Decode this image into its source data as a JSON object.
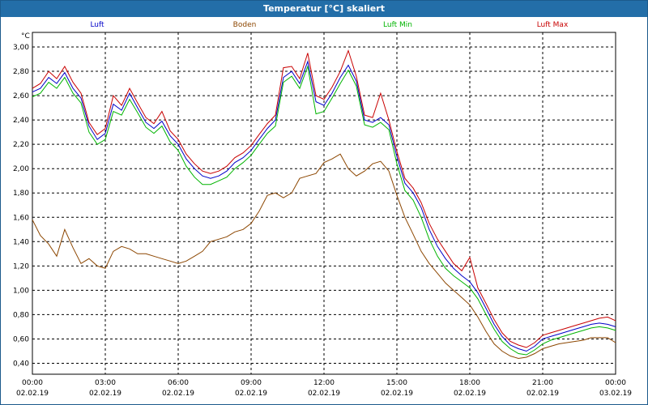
{
  "window": {
    "title": "Temperatur [°C] skaliert"
  },
  "chart_data": {
    "type": "line",
    "title": "Temperatur [°C] skaliert",
    "ylabel": "°C",
    "xlabel": "",
    "xlim": [
      "02.02.19 00:00",
      "03.02.19 00:00"
    ],
    "ylim": [
      0.31,
      3.12
    ],
    "yticks": [
      "3,00",
      "2,80",
      "2,60",
      "2,40",
      "2,20",
      "2,00",
      "1,80",
      "1,60",
      "1,40",
      "1,20",
      "1,00",
      "0,80",
      "0,60",
      "0,40"
    ],
    "ytick_values": [
      3.0,
      2.8,
      2.6,
      2.4,
      2.2,
      2.0,
      1.8,
      1.6,
      1.4,
      1.2,
      1.0,
      0.8,
      0.6,
      0.4
    ],
    "xticks": [
      {
        "time": "00:00",
        "date": "02.02.19",
        "hour": 0
      },
      {
        "time": "03:00",
        "date": "02.02.19",
        "hour": 3
      },
      {
        "time": "06:00",
        "date": "02.02.19",
        "hour": 6
      },
      {
        "time": "09:00",
        "date": "02.02.19",
        "hour": 9
      },
      {
        "time": "12:00",
        "date": "02.02.19",
        "hour": 12
      },
      {
        "time": "15:00",
        "date": "02.02.19",
        "hour": 15
      },
      {
        "time": "18:00",
        "date": "02.02.19",
        "hour": 18
      },
      {
        "time": "21:00",
        "date": "02.02.19",
        "hour": 21
      },
      {
        "time": "00:00",
        "date": "03.02.19",
        "hour": 24
      }
    ],
    "grid": true,
    "legend_position": "top",
    "series": [
      {
        "name": "Luft",
        "color": "#0000c8",
        "points": [
          [
            0,
            2.63
          ],
          [
            0.33,
            2.66
          ],
          [
            0.67,
            2.75
          ],
          [
            1,
            2.7
          ],
          [
            1.33,
            2.79
          ],
          [
            1.67,
            2.66
          ],
          [
            2,
            2.58
          ],
          [
            2.33,
            2.35
          ],
          [
            2.67,
            2.24
          ],
          [
            3,
            2.29
          ],
          [
            3.33,
            2.53
          ],
          [
            3.67,
            2.48
          ],
          [
            4,
            2.62
          ],
          [
            4.33,
            2.5
          ],
          [
            4.67,
            2.38
          ],
          [
            5,
            2.33
          ],
          [
            5.33,
            2.39
          ],
          [
            5.67,
            2.27
          ],
          [
            6,
            2.2
          ],
          [
            6.33,
            2.08
          ],
          [
            6.67,
            2.0
          ],
          [
            7,
            1.94
          ],
          [
            7.33,
            1.92
          ],
          [
            7.67,
            1.94
          ],
          [
            8,
            1.98
          ],
          [
            8.33,
            2.05
          ],
          [
            8.67,
            2.09
          ],
          [
            9,
            2.15
          ],
          [
            9.33,
            2.24
          ],
          [
            9.67,
            2.33
          ],
          [
            10,
            2.4
          ],
          [
            10.33,
            2.75
          ],
          [
            10.67,
            2.8
          ],
          [
            11,
            2.7
          ],
          [
            11.33,
            2.88
          ],
          [
            11.67,
            2.55
          ],
          [
            12,
            2.52
          ],
          [
            12.33,
            2.62
          ],
          [
            12.67,
            2.75
          ],
          [
            13,
            2.85
          ],
          [
            13.33,
            2.72
          ],
          [
            13.67,
            2.4
          ],
          [
            14,
            2.38
          ],
          [
            14.33,
            2.42
          ],
          [
            14.67,
            2.36
          ],
          [
            15,
            2.1
          ],
          [
            15.33,
            1.88
          ],
          [
            15.67,
            1.8
          ],
          [
            16,
            1.68
          ],
          [
            16.33,
            1.5
          ],
          [
            16.67,
            1.36
          ],
          [
            17,
            1.26
          ],
          [
            17.33,
            1.18
          ],
          [
            17.67,
            1.12
          ],
          [
            18,
            1.07
          ],
          [
            18.33,
            0.98
          ],
          [
            18.67,
            0.85
          ],
          [
            19,
            0.72
          ],
          [
            19.33,
            0.62
          ],
          [
            19.67,
            0.55
          ],
          [
            20,
            0.52
          ],
          [
            20.33,
            0.5
          ],
          [
            20.67,
            0.54
          ],
          [
            21,
            0.6
          ],
          [
            21.33,
            0.62
          ],
          [
            21.67,
            0.64
          ],
          [
            22,
            0.66
          ],
          [
            22.33,
            0.68
          ],
          [
            22.67,
            0.7
          ],
          [
            23,
            0.72
          ],
          [
            23.33,
            0.73
          ],
          [
            23.67,
            0.72
          ],
          [
            24,
            0.7
          ]
        ]
      },
      {
        "name": "Boden",
        "color": "#8c4600",
        "points": [
          [
            0,
            1.58
          ],
          [
            0.33,
            1.45
          ],
          [
            0.67,
            1.38
          ],
          [
            1,
            1.28
          ],
          [
            1.33,
            1.5
          ],
          [
            1.67,
            1.35
          ],
          [
            2,
            1.22
          ],
          [
            2.33,
            1.26
          ],
          [
            2.67,
            1.2
          ],
          [
            3,
            1.18
          ],
          [
            3.33,
            1.32
          ],
          [
            3.67,
            1.36
          ],
          [
            4,
            1.34
          ],
          [
            4.33,
            1.3
          ],
          [
            4.67,
            1.3
          ],
          [
            5,
            1.28
          ],
          [
            5.33,
            1.26
          ],
          [
            5.67,
            1.24
          ],
          [
            6,
            1.22
          ],
          [
            6.33,
            1.24
          ],
          [
            6.67,
            1.28
          ],
          [
            7,
            1.32
          ],
          [
            7.33,
            1.4
          ],
          [
            7.67,
            1.42
          ],
          [
            8,
            1.44
          ],
          [
            8.33,
            1.48
          ],
          [
            8.67,
            1.5
          ],
          [
            9,
            1.55
          ],
          [
            9.33,
            1.65
          ],
          [
            9.67,
            1.78
          ],
          [
            10,
            1.8
          ],
          [
            10.33,
            1.76
          ],
          [
            10.67,
            1.8
          ],
          [
            11,
            1.92
          ],
          [
            11.33,
            1.94
          ],
          [
            11.67,
            1.96
          ],
          [
            12,
            2.05
          ],
          [
            12.33,
            2.08
          ],
          [
            12.67,
            2.12
          ],
          [
            13,
            2.0
          ],
          [
            13.33,
            1.94
          ],
          [
            13.67,
            1.98
          ],
          [
            14,
            2.04
          ],
          [
            14.33,
            2.06
          ],
          [
            14.67,
            1.98
          ],
          [
            15,
            1.78
          ],
          [
            15.33,
            1.6
          ],
          [
            15.67,
            1.46
          ],
          [
            16,
            1.32
          ],
          [
            16.33,
            1.22
          ],
          [
            16.67,
            1.14
          ],
          [
            17,
            1.06
          ],
          [
            17.33,
            1.0
          ],
          [
            17.67,
            0.94
          ],
          [
            18,
            0.88
          ],
          [
            18.33,
            0.78
          ],
          [
            18.67,
            0.66
          ],
          [
            19,
            0.56
          ],
          [
            19.33,
            0.5
          ],
          [
            19.67,
            0.46
          ],
          [
            20,
            0.44
          ],
          [
            20.33,
            0.45
          ],
          [
            20.67,
            0.48
          ],
          [
            21,
            0.52
          ],
          [
            21.33,
            0.54
          ],
          [
            21.67,
            0.56
          ],
          [
            22,
            0.57
          ],
          [
            22.33,
            0.58
          ],
          [
            22.67,
            0.59
          ],
          [
            23,
            0.61
          ],
          [
            23.33,
            0.61
          ],
          [
            23.67,
            0.61
          ],
          [
            24,
            0.57
          ]
        ]
      },
      {
        "name": "Luft Min",
        "color": "#00b400",
        "points": [
          [
            0,
            2.59
          ],
          [
            0.33,
            2.62
          ],
          [
            0.67,
            2.71
          ],
          [
            1,
            2.66
          ],
          [
            1.33,
            2.75
          ],
          [
            1.67,
            2.62
          ],
          [
            2,
            2.54
          ],
          [
            2.33,
            2.3
          ],
          [
            2.67,
            2.2
          ],
          [
            3,
            2.24
          ],
          [
            3.33,
            2.47
          ],
          [
            3.67,
            2.44
          ],
          [
            4,
            2.57
          ],
          [
            4.33,
            2.46
          ],
          [
            4.67,
            2.34
          ],
          [
            5,
            2.29
          ],
          [
            5.33,
            2.35
          ],
          [
            5.67,
            2.22
          ],
          [
            6,
            2.15
          ],
          [
            6.33,
            2.02
          ],
          [
            6.67,
            1.93
          ],
          [
            7,
            1.87
          ],
          [
            7.33,
            1.87
          ],
          [
            7.67,
            1.9
          ],
          [
            8,
            1.93
          ],
          [
            8.33,
            2.0
          ],
          [
            8.67,
            2.05
          ],
          [
            9,
            2.11
          ],
          [
            9.33,
            2.2
          ],
          [
            9.67,
            2.29
          ],
          [
            10,
            2.35
          ],
          [
            10.33,
            2.71
          ],
          [
            10.67,
            2.76
          ],
          [
            11,
            2.66
          ],
          [
            11.33,
            2.84
          ],
          [
            11.67,
            2.45
          ],
          [
            12,
            2.47
          ],
          [
            12.33,
            2.58
          ],
          [
            12.67,
            2.7
          ],
          [
            13,
            2.81
          ],
          [
            13.33,
            2.68
          ],
          [
            13.67,
            2.36
          ],
          [
            14,
            2.34
          ],
          [
            14.33,
            2.38
          ],
          [
            14.67,
            2.32
          ],
          [
            15,
            2.04
          ],
          [
            15.33,
            1.82
          ],
          [
            15.67,
            1.74
          ],
          [
            16,
            1.6
          ],
          [
            16.33,
            1.42
          ],
          [
            16.67,
            1.28
          ],
          [
            17,
            1.18
          ],
          [
            17.33,
            1.12
          ],
          [
            17.67,
            1.07
          ],
          [
            18,
            1.02
          ],
          [
            18.33,
            0.93
          ],
          [
            18.67,
            0.8
          ],
          [
            19,
            0.68
          ],
          [
            19.33,
            0.58
          ],
          [
            19.67,
            0.52
          ],
          [
            20,
            0.48
          ],
          [
            20.33,
            0.47
          ],
          [
            20.67,
            0.51
          ],
          [
            21,
            0.56
          ],
          [
            21.33,
            0.59
          ],
          [
            21.67,
            0.61
          ],
          [
            22,
            0.63
          ],
          [
            22.33,
            0.65
          ],
          [
            22.67,
            0.67
          ],
          [
            23,
            0.69
          ],
          [
            23.33,
            0.7
          ],
          [
            23.67,
            0.69
          ],
          [
            24,
            0.67
          ]
        ]
      },
      {
        "name": "Luft Max",
        "color": "#c80000",
        "points": [
          [
            0,
            2.66
          ],
          [
            0.33,
            2.7
          ],
          [
            0.67,
            2.8
          ],
          [
            1,
            2.74
          ],
          [
            1.33,
            2.84
          ],
          [
            1.67,
            2.71
          ],
          [
            2,
            2.62
          ],
          [
            2.33,
            2.38
          ],
          [
            2.67,
            2.28
          ],
          [
            3,
            2.33
          ],
          [
            3.33,
            2.6
          ],
          [
            3.67,
            2.52
          ],
          [
            4,
            2.66
          ],
          [
            4.33,
            2.54
          ],
          [
            4.67,
            2.42
          ],
          [
            5,
            2.37
          ],
          [
            5.33,
            2.47
          ],
          [
            5.67,
            2.31
          ],
          [
            6,
            2.24
          ],
          [
            6.33,
            2.12
          ],
          [
            6.67,
            2.04
          ],
          [
            7,
            1.98
          ],
          [
            7.33,
            1.96
          ],
          [
            7.67,
            1.98
          ],
          [
            8,
            2.02
          ],
          [
            8.33,
            2.09
          ],
          [
            8.67,
            2.13
          ],
          [
            9,
            2.19
          ],
          [
            9.33,
            2.28
          ],
          [
            9.67,
            2.37
          ],
          [
            10,
            2.44
          ],
          [
            10.33,
            2.83
          ],
          [
            10.67,
            2.84
          ],
          [
            11,
            2.74
          ],
          [
            11.33,
            2.95
          ],
          [
            11.67,
            2.6
          ],
          [
            12,
            2.57
          ],
          [
            12.33,
            2.67
          ],
          [
            12.67,
            2.8
          ],
          [
            13,
            2.97
          ],
          [
            13.33,
            2.76
          ],
          [
            13.67,
            2.44
          ],
          [
            14,
            2.42
          ],
          [
            14.33,
            2.62
          ],
          [
            14.67,
            2.4
          ],
          [
            15,
            2.14
          ],
          [
            15.33,
            1.92
          ],
          [
            15.67,
            1.84
          ],
          [
            16,
            1.72
          ],
          [
            16.33,
            1.55
          ],
          [
            16.67,
            1.42
          ],
          [
            17,
            1.32
          ],
          [
            17.33,
            1.22
          ],
          [
            17.67,
            1.16
          ],
          [
            18,
            1.27
          ],
          [
            18.33,
            1.02
          ],
          [
            18.67,
            0.89
          ],
          [
            19,
            0.76
          ],
          [
            19.33,
            0.65
          ],
          [
            19.67,
            0.58
          ],
          [
            20,
            0.55
          ],
          [
            20.33,
            0.53
          ],
          [
            20.67,
            0.57
          ],
          [
            21,
            0.63
          ],
          [
            21.33,
            0.65
          ],
          [
            21.67,
            0.67
          ],
          [
            22,
            0.69
          ],
          [
            22.33,
            0.71
          ],
          [
            22.67,
            0.73
          ],
          [
            23,
            0.75
          ],
          [
            23.33,
            0.77
          ],
          [
            23.67,
            0.78
          ],
          [
            24,
            0.75
          ]
        ]
      }
    ]
  }
}
